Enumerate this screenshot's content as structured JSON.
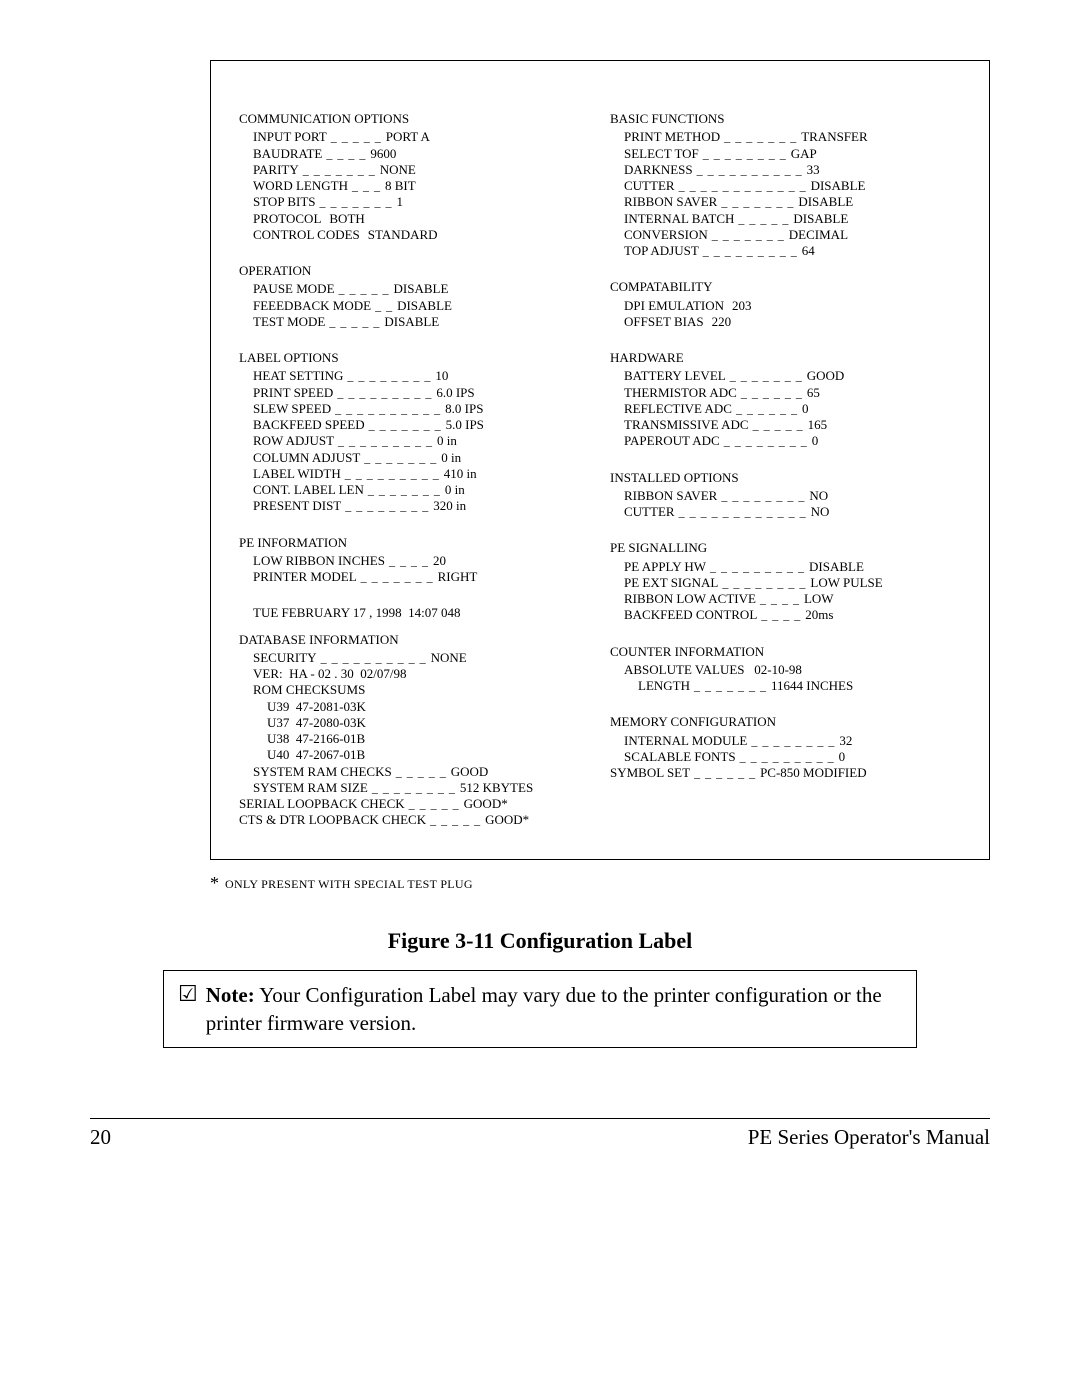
{
  "figure_caption": "Figure 3-11  Configuration Label",
  "note": {
    "label": "Note:",
    "text": "Your Configuration Label may vary due to the printer configuration or the printer firmware version."
  },
  "footnote": "ONLY PRESENT WITH SPECIAL TEST PLUG",
  "footer": {
    "page_number": "20",
    "manual_title": "PE Series Operator's Manual"
  },
  "left_column": [
    {
      "type": "title",
      "text": "COMMUNICATION OPTIONS"
    },
    {
      "type": "kv",
      "indent": 1,
      "label": "INPUT PORT",
      "fill": "_ _ _ _ _",
      "value": "PORT A"
    },
    {
      "type": "kv",
      "indent": 1,
      "label": "BAUDRATE",
      "fill": "_ _ _ _",
      "value": "9600"
    },
    {
      "type": "kv",
      "indent": 1,
      "label": "PARITY",
      "fill": "_ _ _ _ _ _ _",
      "value": "NONE"
    },
    {
      "type": "kv",
      "indent": 1,
      "label": "WORD LENGTH",
      "fill": "_ _ _",
      "value": "8 BIT"
    },
    {
      "type": "kv",
      "indent": 1,
      "label": "STOP BITS",
      "fill": "_ _ _ _ _ _ _",
      "value": "1"
    },
    {
      "type": "kv",
      "indent": 1,
      "label": "PROTOCOL",
      "fill": "",
      "value": "BOTH"
    },
    {
      "type": "kv",
      "indent": 1,
      "label": "CONTROL CODES",
      "fill": "",
      "value": "STANDARD"
    },
    {
      "type": "spacer"
    },
    {
      "type": "title",
      "text": "OPERATION"
    },
    {
      "type": "kv",
      "indent": 1,
      "label": "PAUSE MODE",
      "fill": "_ _ _ _ _",
      "value": "DISABLE"
    },
    {
      "type": "kv",
      "indent": 1,
      "label": "FEEEDBACK MODE",
      "fill": "_ _",
      "value": "DISABLE"
    },
    {
      "type": "kv",
      "indent": 1,
      "label": "TEST MODE",
      "fill": "_ _ _ _ _",
      "value": "DISABLE"
    },
    {
      "type": "spacer"
    },
    {
      "type": "title",
      "text": "LABEL OPTIONS"
    },
    {
      "type": "kv",
      "indent": 1,
      "label": "HEAT SETTING",
      "fill": "_ _ _ _ _ _ _ _",
      "value": "10"
    },
    {
      "type": "kv",
      "indent": 1,
      "label": "PRINT SPEED",
      "fill": "_ _ _ _ _ _ _ _ _",
      "value": "6.0 IPS"
    },
    {
      "type": "kv",
      "indent": 1,
      "label": "SLEW SPEED",
      "fill": "_ _ _ _ _ _ _ _ _ _",
      "value": "8.0 IPS"
    },
    {
      "type": "kv",
      "indent": 1,
      "label": "BACKFEED SPEED",
      "fill": "_ _ _ _ _ _ _",
      "value": "5.0 IPS"
    },
    {
      "type": "kv",
      "indent": 1,
      "label": "ROW ADJUST",
      "fill": "_ _ _ _ _ _ _ _ _",
      "value": "0 in"
    },
    {
      "type": "kv",
      "indent": 1,
      "label": "COLUMN ADJUST",
      "fill": "_ _ _ _ _ _ _",
      "value": "0 in"
    },
    {
      "type": "kv",
      "indent": 1,
      "label": "LABEL WIDTH",
      "fill": "_ _ _ _ _ _ _ _ _",
      "value": "410 in"
    },
    {
      "type": "kv",
      "indent": 1,
      "label": "CONT. LABEL LEN",
      "fill": "_ _ _ _ _ _ _",
      "value": "0 in"
    },
    {
      "type": "kv",
      "indent": 1,
      "label": "PRESENT DIST",
      "fill": "_ _ _ _ _ _ _ _",
      "value": "320 in"
    },
    {
      "type": "spacer"
    },
    {
      "type": "title",
      "text": "PE INFORMATION"
    },
    {
      "type": "kv",
      "indent": 1,
      "label": "LOW RIBBON INCHES",
      "fill": "_ _ _ _",
      "value": "20"
    },
    {
      "type": "kv",
      "indent": 1,
      "label": "PRINTER MODEL",
      "fill": "_ _ _ _ _ _ _",
      "value": "RIGHT"
    },
    {
      "type": "spacer"
    },
    {
      "type": "spacer"
    },
    {
      "type": "plain",
      "indent": 1,
      "text": "TUE FEBRUARY 17 , 1998  14:07 048"
    },
    {
      "type": "title",
      "text": "DATABASE INFORMATION"
    },
    {
      "type": "kv",
      "indent": 1,
      "label": "SECURITY",
      "fill": "_ _ _ _ _ _ _ _ _ _",
      "value": "NONE"
    },
    {
      "type": "plain",
      "indent": 1,
      "text": "VER:  HA - 02 . 30  02/07/98"
    },
    {
      "type": "plain",
      "indent": 1,
      "text": "ROM CHECKSUMS"
    },
    {
      "type": "plain",
      "indent": 2,
      "text": "U39  47-2081-03K"
    },
    {
      "type": "plain",
      "indent": 2,
      "text": "U37  47-2080-03K"
    },
    {
      "type": "plain",
      "indent": 2,
      "text": "U38  47-2166-01B"
    },
    {
      "type": "plain",
      "indent": 2,
      "text": "U40  47-2067-01B"
    },
    {
      "type": "kv",
      "indent": 1,
      "label": "SYSTEM RAM CHECKS",
      "fill": "_ _ _ _ _",
      "value": "GOOD"
    },
    {
      "type": "kv",
      "indent": 1,
      "label": "SYSTEM RAM SIZE",
      "fill": "_ _ _ _ _ _ _ _",
      "value": "512 KBYTES"
    },
    {
      "type": "kv",
      "indent": 0,
      "label": "SERIAL LOOPBACK CHECK",
      "fill": "_ _ _ _ _",
      "value": "GOOD*"
    },
    {
      "type": "kv",
      "indent": 0,
      "label": "CTS & DTR LOOPBACK CHECK",
      "fill": "_ _ _ _ _",
      "value": "GOOD*"
    }
  ],
  "right_column": [
    {
      "type": "title",
      "text": "BASIC FUNCTIONS"
    },
    {
      "type": "kv",
      "indent": 1,
      "label": "PRINT METHOD",
      "fill": "_ _ _ _ _ _ _",
      "value": "TRANSFER"
    },
    {
      "type": "kv",
      "indent": 1,
      "label": "SELECT TOF",
      "fill": "_ _ _ _ _ _ _ _",
      "value": "GAP"
    },
    {
      "type": "kv",
      "indent": 1,
      "label": "DARKNESS",
      "fill": "_ _ _ _ _ _ _ _ _ _",
      "value": "33"
    },
    {
      "type": "kv",
      "indent": 1,
      "label": "CUTTER",
      "fill": "_ _ _ _ _ _ _ _ _ _ _ _",
      "value": "DISABLE"
    },
    {
      "type": "kv",
      "indent": 1,
      "label": "RIBBON SAVER",
      "fill": "_ _ _ _ _ _ _",
      "value": "DISABLE"
    },
    {
      "type": "kv",
      "indent": 1,
      "label": "INTERNAL BATCH",
      "fill": "_ _ _ _ _",
      "value": "DISABLE"
    },
    {
      "type": "kv",
      "indent": 1,
      "label": "CONVERSION",
      "fill": "_ _ _ _ _ _ _",
      "value": "DECIMAL"
    },
    {
      "type": "kv",
      "indent": 1,
      "label": "TOP ADJUST",
      "fill": "_ _ _ _ _ _ _ _ _",
      "value": "64"
    },
    {
      "type": "spacer"
    },
    {
      "type": "title",
      "text": "COMPATABILITY"
    },
    {
      "type": "kv",
      "indent": 1,
      "label": "DPI EMULATION",
      "fill": "",
      "value": "203"
    },
    {
      "type": "kv",
      "indent": 1,
      "label": "OFFSET BIAS",
      "fill": "",
      "value": "220"
    },
    {
      "type": "spacer"
    },
    {
      "type": "title",
      "text": "HARDWARE"
    },
    {
      "type": "kv",
      "indent": 1,
      "label": "BATTERY LEVEL",
      "fill": "_ _ _ _ _ _ _",
      "value": "GOOD"
    },
    {
      "type": "kv",
      "indent": 1,
      "label": "THERMISTOR ADC",
      "fill": "_ _ _ _ _ _",
      "value": "65"
    },
    {
      "type": "kv",
      "indent": 1,
      "label": "REFLECTIVE ADC",
      "fill": "_ _ _ _ _ _",
      "value": "0"
    },
    {
      "type": "kv",
      "indent": 1,
      "label": "TRANSMISSIVE ADC",
      "fill": "_ _ _ _ _",
      "value": "165"
    },
    {
      "type": "kv",
      "indent": 1,
      "label": "PAPEROUT ADC",
      "fill": "_ _ _ _ _ _ _ _",
      "value": "0"
    },
    {
      "type": "spacer"
    },
    {
      "type": "title",
      "text": "INSTALLED OPTIONS"
    },
    {
      "type": "kv",
      "indent": 1,
      "label": "RIBBON SAVER",
      "fill": "_ _ _ _ _ _ _ _",
      "value": "NO"
    },
    {
      "type": "kv",
      "indent": 1,
      "label": "CUTTER",
      "fill": "_ _ _ _ _ _ _ _ _ _ _ _",
      "value": "NO"
    },
    {
      "type": "spacer"
    },
    {
      "type": "title",
      "text": "PE  SIGNALLING"
    },
    {
      "type": "kv",
      "indent": 1,
      "label": "PE APPLY HW",
      "fill": "_ _ _ _ _ _ _ _ _",
      "value": "DISABLE"
    },
    {
      "type": "kv",
      "indent": 1,
      "label": "PE EXT SIGNAL",
      "fill": "_ _ _ _ _ _ _ _",
      "value": "LOW PULSE"
    },
    {
      "type": "kv",
      "indent": 1,
      "label": "RIBBON LOW ACTIVE",
      "fill": "_ _ _ _",
      "value": "LOW"
    },
    {
      "type": "kv",
      "indent": 1,
      "label": "BACKFEED CONTROL",
      "fill": "_ _ _ _",
      "value": "20ms"
    },
    {
      "type": "spacer"
    },
    {
      "type": "title",
      "text": "COUNTER INFORMATION"
    },
    {
      "type": "plain",
      "indent": 1,
      "text": "ABSOLUTE VALUES   02-10-98"
    },
    {
      "type": "kv",
      "indent": 2,
      "label": "LENGTH",
      "fill": "_ _ _ _ _ _ _",
      "value": "11644 INCHES"
    },
    {
      "type": "spacer"
    },
    {
      "type": "title",
      "text": "MEMORY CONFIGURATION"
    },
    {
      "type": "kv",
      "indent": 1,
      "label": "INTERNAL MODULE",
      "fill": "_ _ _ _ _ _ _ _",
      "value": "32"
    },
    {
      "type": "kv",
      "indent": 1,
      "label": "SCALABLE FONTS",
      "fill": "_ _ _ _ _ _ _ _ _",
      "value": "0"
    },
    {
      "type": "kv",
      "indent": 0,
      "label": "SYMBOL SET",
      "fill": "_ _ _ _ _ _",
      "value": "PC-850 MODIFIED"
    }
  ]
}
